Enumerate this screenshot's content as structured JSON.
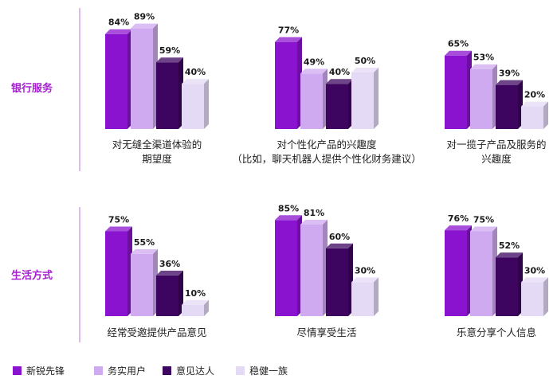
{
  "row_labels": [
    "银行服务",
    "生活方式"
  ],
  "legend": [
    {
      "label": "新锐先锋",
      "color": "#8a13cf"
    },
    {
      "label": "务实用户",
      "color": "#cfaaf0"
    },
    {
      "label": "意见达人",
      "color": "#3d0560"
    },
    {
      "label": "稳健一族",
      "color": "#e4daf6"
    }
  ],
  "chart_data": [
    {
      "type": "bar",
      "group": "银行服务",
      "caption": [
        "对无缝全渠道体验的",
        "期望度"
      ],
      "series": [
        {
          "name": "新锐先锋",
          "value": 84,
          "label": "84%"
        },
        {
          "name": "务实用户",
          "value": 89,
          "label": "89%"
        },
        {
          "name": "意见达人",
          "value": 59,
          "label": "59%"
        },
        {
          "name": "稳健一族",
          "value": 40,
          "label": "40%"
        }
      ]
    },
    {
      "type": "bar",
      "group": "银行服务",
      "caption": [
        "对个性化产品的兴趣度",
        "（比如，聊天机器人提供个性化财务建议）"
      ],
      "series": [
        {
          "name": "新锐先锋",
          "value": 77,
          "label": "77%"
        },
        {
          "name": "务实用户",
          "value": 49,
          "label": "49%"
        },
        {
          "name": "意见达人",
          "value": 40,
          "label": "40%"
        },
        {
          "name": "稳健一族",
          "value": 50,
          "label": "50%"
        }
      ]
    },
    {
      "type": "bar",
      "group": "银行服务",
      "caption": [
        "对一揽子产品及服务的",
        "兴趣度"
      ],
      "series": [
        {
          "name": "新锐先锋",
          "value": 65,
          "label": "65%"
        },
        {
          "name": "务实用户",
          "value": 53,
          "label": "53%"
        },
        {
          "name": "意见达人",
          "value": 39,
          "label": "39%"
        },
        {
          "name": "稳健一族",
          "value": 20,
          "label": "20%"
        }
      ]
    },
    {
      "type": "bar",
      "group": "生活方式",
      "caption": [
        "经常受邀提供产品意见"
      ],
      "series": [
        {
          "name": "新锐先锋",
          "value": 75,
          "label": "75%"
        },
        {
          "name": "务实用户",
          "value": 55,
          "label": "55%"
        },
        {
          "name": "意见达人",
          "value": 36,
          "label": "36%"
        },
        {
          "name": "稳健一族",
          "value": 10,
          "label": "10%"
        }
      ]
    },
    {
      "type": "bar",
      "group": "生活方式",
      "caption": [
        "尽情享受生活"
      ],
      "series": [
        {
          "name": "新锐先锋",
          "value": 85,
          "label": "85%"
        },
        {
          "name": "务实用户",
          "value": 81,
          "label": "81%"
        },
        {
          "name": "意见达人",
          "value": 60,
          "label": "60%"
        },
        {
          "name": "稳健一族",
          "value": 30,
          "label": "30%"
        }
      ]
    },
    {
      "type": "bar",
      "group": "生活方式",
      "caption": [
        "乐意分享个人信息"
      ],
      "series": [
        {
          "name": "新锐先锋",
          "value": 76,
          "label": "76%"
        },
        {
          "name": "务实用户",
          "value": 75,
          "label": "75%"
        },
        {
          "name": "意见达人",
          "value": 52,
          "label": "52%"
        },
        {
          "name": "稳健一族",
          "value": 30,
          "label": "30%"
        }
      ]
    }
  ]
}
